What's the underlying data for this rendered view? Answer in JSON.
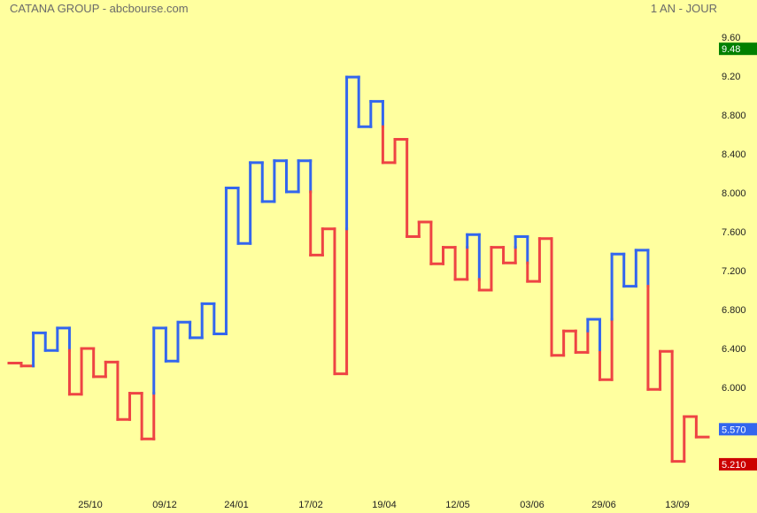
{
  "header": {
    "title": "CATANA GROUP - abcbourse.com",
    "period": "1 AN - JOUR"
  },
  "chart_data": {
    "type": "line",
    "style": "kagi",
    "title": "CATANA GROUP - abcbourse.com",
    "period_label": "1 AN - JOUR",
    "ylim": [
      5.1,
      9.7
    ],
    "y_ticks": [
      {
        "value": 9.6,
        "label": "9.60"
      },
      {
        "value": 9.2,
        "label": "9.20"
      },
      {
        "value": 8.8,
        "label": "8.800"
      },
      {
        "value": 8.4,
        "label": "8.400"
      },
      {
        "value": 8.0,
        "label": "8.000"
      },
      {
        "value": 7.6,
        "label": "7.600"
      },
      {
        "value": 7.2,
        "label": "7.200"
      },
      {
        "value": 6.8,
        "label": "6.800"
      },
      {
        "value": 6.4,
        "label": "6.400"
      },
      {
        "value": 6.0,
        "label": "6.000"
      },
      {
        "value": 5.6,
        "label": "5.600"
      }
    ],
    "x_ticks": [
      "25/10",
      "09/12",
      "24/01",
      "17/02",
      "19/04",
      "12/05",
      "03/06",
      "29/06",
      "13/09"
    ],
    "badges": [
      {
        "label": "9.48",
        "value": 9.48,
        "color": "#008000"
      },
      {
        "label": "5.570",
        "value": 5.57,
        "color": "#3366ee"
      },
      {
        "label": "5.210",
        "value": 5.21,
        "color": "#cc0000"
      }
    ],
    "prices": [
      6.25,
      6.22,
      6.56,
      6.38,
      6.61,
      5.93,
      6.4,
      6.11,
      6.26,
      5.67,
      5.94,
      5.47,
      6.61,
      6.27,
      6.67,
      6.51,
      6.86,
      6.55,
      8.05,
      7.48,
      8.31,
      7.91,
      8.33,
      8.01,
      8.33,
      7.36,
      7.63,
      6.14,
      9.19,
      8.68,
      8.94,
      8.31,
      8.55,
      7.55,
      7.7,
      7.27,
      7.44,
      7.11,
      7.57,
      7.0,
      7.44,
      7.28,
      7.55,
      7.09,
      7.53,
      6.33,
      6.58,
      6.36,
      6.7,
      6.08,
      7.37,
      7.04,
      7.41,
      5.98,
      6.37,
      5.24,
      5.7,
      5.49
    ],
    "thick_color": "#3366ee",
    "thin_color": "#ee4444",
    "grid": false
  }
}
